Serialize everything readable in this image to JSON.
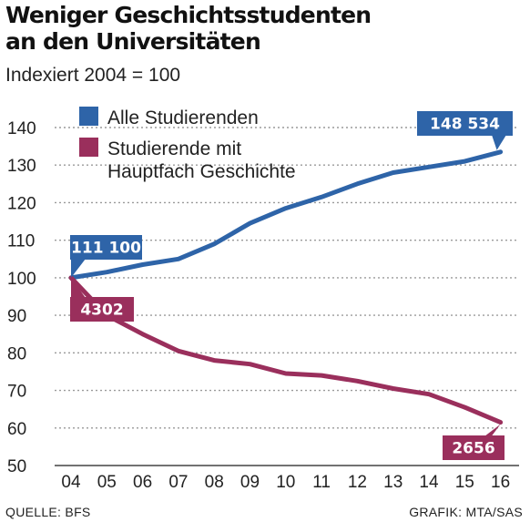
{
  "title_line1": "Weniger Geschichtsstudenten",
  "title_line2": "an den Universitäten",
  "subtitle": "Indexiert 2004 = 100",
  "source": "QUELLE: BFS",
  "credit": "GRAFIK: MTA/SAS",
  "colors": {
    "blue": "#2e64a8",
    "purple": "#9a2f5c",
    "grid": "#9a9a9a"
  },
  "chart_data": {
    "type": "line",
    "categories": [
      "04",
      "05",
      "06",
      "07",
      "08",
      "09",
      "10",
      "11",
      "12",
      "13",
      "14",
      "15",
      "16"
    ],
    "ylim": [
      50,
      140
    ],
    "yticks": [
      50,
      60,
      70,
      80,
      90,
      100,
      110,
      120,
      130,
      140
    ],
    "grid": true,
    "legend_position": "top-left",
    "series": [
      {
        "name": "Alle Studierenden",
        "color": "#2e64a8",
        "values": [
          100,
          101.5,
          103.5,
          105,
          109,
          114.5,
          118.5,
          121.5,
          125,
          128,
          129.5,
          131,
          133.5
        ],
        "start_label": "111 100",
        "end_label": "148 534"
      },
      {
        "name": "Studierende mit Hauptfach Geschichte",
        "color": "#9a2f5c",
        "values": [
          100,
          90,
          85,
          80.5,
          78,
          77,
          74.5,
          74,
          72.5,
          70.5,
          69,
          65.5,
          61.5
        ],
        "start_label": "4302",
        "end_label": "2656"
      }
    ]
  }
}
